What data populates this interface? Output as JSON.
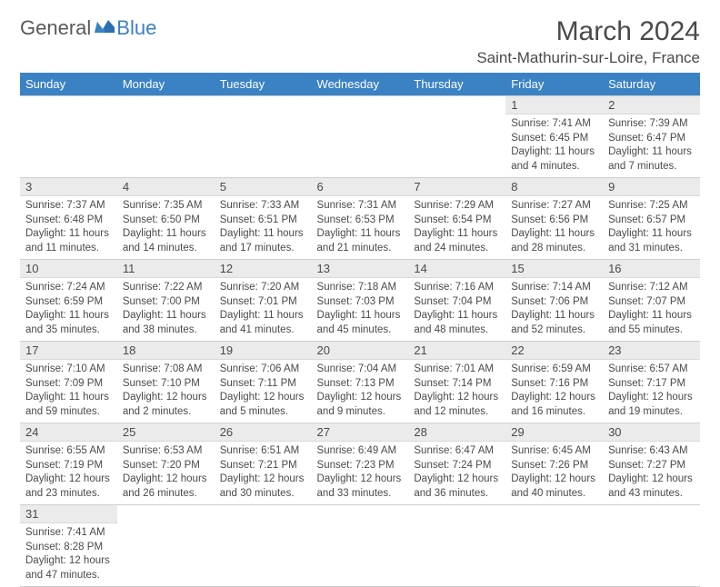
{
  "brand": {
    "text1": "General",
    "text2": "Blue"
  },
  "title": "March 2024",
  "location": "Saint-Mathurin-sur-Loire, France",
  "colors": {
    "header_bg": "#3b82c4",
    "header_text": "#ffffff",
    "daynum_bg": "#ebebeb",
    "border": "#cfcfcf",
    "body_text": "#4a4a4a"
  },
  "day_names": [
    "Sunday",
    "Monday",
    "Tuesday",
    "Wednesday",
    "Thursday",
    "Friday",
    "Saturday"
  ],
  "weeks": [
    [
      null,
      null,
      null,
      null,
      null,
      {
        "n": "1",
        "sr": "Sunrise: 7:41 AM",
        "ss": "Sunset: 6:45 PM",
        "d1": "Daylight: 11 hours",
        "d2": "and 4 minutes."
      },
      {
        "n": "2",
        "sr": "Sunrise: 7:39 AM",
        "ss": "Sunset: 6:47 PM",
        "d1": "Daylight: 11 hours",
        "d2": "and 7 minutes."
      }
    ],
    [
      {
        "n": "3",
        "sr": "Sunrise: 7:37 AM",
        "ss": "Sunset: 6:48 PM",
        "d1": "Daylight: 11 hours",
        "d2": "and 11 minutes."
      },
      {
        "n": "4",
        "sr": "Sunrise: 7:35 AM",
        "ss": "Sunset: 6:50 PM",
        "d1": "Daylight: 11 hours",
        "d2": "and 14 minutes."
      },
      {
        "n": "5",
        "sr": "Sunrise: 7:33 AM",
        "ss": "Sunset: 6:51 PM",
        "d1": "Daylight: 11 hours",
        "d2": "and 17 minutes."
      },
      {
        "n": "6",
        "sr": "Sunrise: 7:31 AM",
        "ss": "Sunset: 6:53 PM",
        "d1": "Daylight: 11 hours",
        "d2": "and 21 minutes."
      },
      {
        "n": "7",
        "sr": "Sunrise: 7:29 AM",
        "ss": "Sunset: 6:54 PM",
        "d1": "Daylight: 11 hours",
        "d2": "and 24 minutes."
      },
      {
        "n": "8",
        "sr": "Sunrise: 7:27 AM",
        "ss": "Sunset: 6:56 PM",
        "d1": "Daylight: 11 hours",
        "d2": "and 28 minutes."
      },
      {
        "n": "9",
        "sr": "Sunrise: 7:25 AM",
        "ss": "Sunset: 6:57 PM",
        "d1": "Daylight: 11 hours",
        "d2": "and 31 minutes."
      }
    ],
    [
      {
        "n": "10",
        "sr": "Sunrise: 7:24 AM",
        "ss": "Sunset: 6:59 PM",
        "d1": "Daylight: 11 hours",
        "d2": "and 35 minutes."
      },
      {
        "n": "11",
        "sr": "Sunrise: 7:22 AM",
        "ss": "Sunset: 7:00 PM",
        "d1": "Daylight: 11 hours",
        "d2": "and 38 minutes."
      },
      {
        "n": "12",
        "sr": "Sunrise: 7:20 AM",
        "ss": "Sunset: 7:01 PM",
        "d1": "Daylight: 11 hours",
        "d2": "and 41 minutes."
      },
      {
        "n": "13",
        "sr": "Sunrise: 7:18 AM",
        "ss": "Sunset: 7:03 PM",
        "d1": "Daylight: 11 hours",
        "d2": "and 45 minutes."
      },
      {
        "n": "14",
        "sr": "Sunrise: 7:16 AM",
        "ss": "Sunset: 7:04 PM",
        "d1": "Daylight: 11 hours",
        "d2": "and 48 minutes."
      },
      {
        "n": "15",
        "sr": "Sunrise: 7:14 AM",
        "ss": "Sunset: 7:06 PM",
        "d1": "Daylight: 11 hours",
        "d2": "and 52 minutes."
      },
      {
        "n": "16",
        "sr": "Sunrise: 7:12 AM",
        "ss": "Sunset: 7:07 PM",
        "d1": "Daylight: 11 hours",
        "d2": "and 55 minutes."
      }
    ],
    [
      {
        "n": "17",
        "sr": "Sunrise: 7:10 AM",
        "ss": "Sunset: 7:09 PM",
        "d1": "Daylight: 11 hours",
        "d2": "and 59 minutes."
      },
      {
        "n": "18",
        "sr": "Sunrise: 7:08 AM",
        "ss": "Sunset: 7:10 PM",
        "d1": "Daylight: 12 hours",
        "d2": "and 2 minutes."
      },
      {
        "n": "19",
        "sr": "Sunrise: 7:06 AM",
        "ss": "Sunset: 7:11 PM",
        "d1": "Daylight: 12 hours",
        "d2": "and 5 minutes."
      },
      {
        "n": "20",
        "sr": "Sunrise: 7:04 AM",
        "ss": "Sunset: 7:13 PM",
        "d1": "Daylight: 12 hours",
        "d2": "and 9 minutes."
      },
      {
        "n": "21",
        "sr": "Sunrise: 7:01 AM",
        "ss": "Sunset: 7:14 PM",
        "d1": "Daylight: 12 hours",
        "d2": "and 12 minutes."
      },
      {
        "n": "22",
        "sr": "Sunrise: 6:59 AM",
        "ss": "Sunset: 7:16 PM",
        "d1": "Daylight: 12 hours",
        "d2": "and 16 minutes."
      },
      {
        "n": "23",
        "sr": "Sunrise: 6:57 AM",
        "ss": "Sunset: 7:17 PM",
        "d1": "Daylight: 12 hours",
        "d2": "and 19 minutes."
      }
    ],
    [
      {
        "n": "24",
        "sr": "Sunrise: 6:55 AM",
        "ss": "Sunset: 7:19 PM",
        "d1": "Daylight: 12 hours",
        "d2": "and 23 minutes."
      },
      {
        "n": "25",
        "sr": "Sunrise: 6:53 AM",
        "ss": "Sunset: 7:20 PM",
        "d1": "Daylight: 12 hours",
        "d2": "and 26 minutes."
      },
      {
        "n": "26",
        "sr": "Sunrise: 6:51 AM",
        "ss": "Sunset: 7:21 PM",
        "d1": "Daylight: 12 hours",
        "d2": "and 30 minutes."
      },
      {
        "n": "27",
        "sr": "Sunrise: 6:49 AM",
        "ss": "Sunset: 7:23 PM",
        "d1": "Daylight: 12 hours",
        "d2": "and 33 minutes."
      },
      {
        "n": "28",
        "sr": "Sunrise: 6:47 AM",
        "ss": "Sunset: 7:24 PM",
        "d1": "Daylight: 12 hours",
        "d2": "and 36 minutes."
      },
      {
        "n": "29",
        "sr": "Sunrise: 6:45 AM",
        "ss": "Sunset: 7:26 PM",
        "d1": "Daylight: 12 hours",
        "d2": "and 40 minutes."
      },
      {
        "n": "30",
        "sr": "Sunrise: 6:43 AM",
        "ss": "Sunset: 7:27 PM",
        "d1": "Daylight: 12 hours",
        "d2": "and 43 minutes."
      }
    ],
    [
      {
        "n": "31",
        "sr": "Sunrise: 7:41 AM",
        "ss": "Sunset: 8:28 PM",
        "d1": "Daylight: 12 hours",
        "d2": "and 47 minutes."
      },
      null,
      null,
      null,
      null,
      null,
      null
    ]
  ]
}
